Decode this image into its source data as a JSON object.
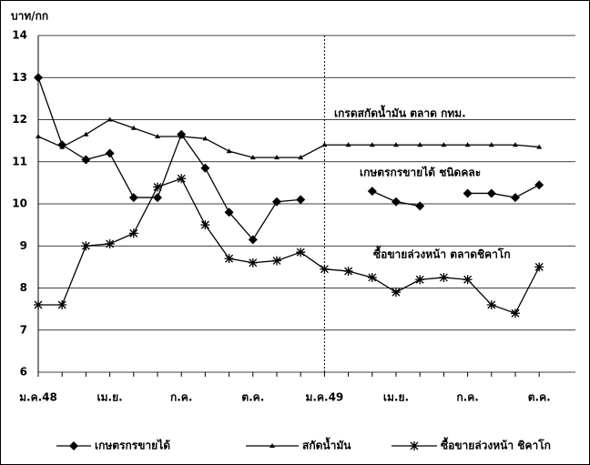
{
  "chart_data": {
    "type": "line",
    "y_label": "บาท/กก",
    "categories": [
      "ม.ค.48",
      null,
      null,
      "เม.ย.",
      null,
      null,
      "ก.ค.",
      null,
      null,
      "ต.ค.",
      null,
      null,
      "ม.ค.49",
      null,
      null,
      "เม.ย.",
      null,
      null,
      "ก.ค.",
      null,
      null,
      "ต.ค."
    ],
    "series": [
      {
        "name": "เกษตรกรขายได้",
        "color": "#000000",
        "marker": "diamond",
        "values": [
          13.0,
          11.4,
          11.05,
          11.2,
          10.15,
          10.15,
          11.65,
          10.85,
          9.8,
          9.15,
          10.05,
          10.1,
          null,
          null,
          10.3,
          10.05,
          9.95,
          null,
          10.25,
          10.25,
          10.15,
          10.45
        ]
      },
      {
        "name": "สกัดน้ำมัน",
        "color": "#000000",
        "marker": "triangle",
        "values": [
          11.6,
          11.35,
          11.65,
          12.0,
          11.8,
          11.6,
          11.6,
          11.55,
          11.25,
          11.1,
          11.1,
          11.1,
          11.4,
          11.4,
          11.4,
          11.4,
          11.4,
          11.4,
          11.4,
          11.4,
          11.4,
          11.35
        ]
      },
      {
        "name": "ซื้อขายล่วงหน้า ชิคาโก",
        "color": "#000000",
        "marker": "star",
        "values": [
          7.6,
          7.6,
          9.0,
          9.05,
          9.3,
          10.4,
          10.6,
          9.5,
          8.7,
          8.6,
          8.65,
          8.85,
          8.45,
          8.4,
          8.25,
          7.9,
          8.2,
          8.25,
          8.2,
          7.6,
          7.4,
          8.5
        ]
      }
    ],
    "annotations": [
      "เกรดสกัดน้ำมัน ตลาด กทม.",
      "เกษตรกรขายได้ ชนิดคละ",
      "ซื้อขายล่วงหน้า ตลาดชิคาโก"
    ],
    "ylim": [
      6,
      14
    ],
    "yticks": [
      6,
      7,
      8,
      9,
      10,
      11,
      12,
      13,
      14
    ],
    "grid": true
  }
}
